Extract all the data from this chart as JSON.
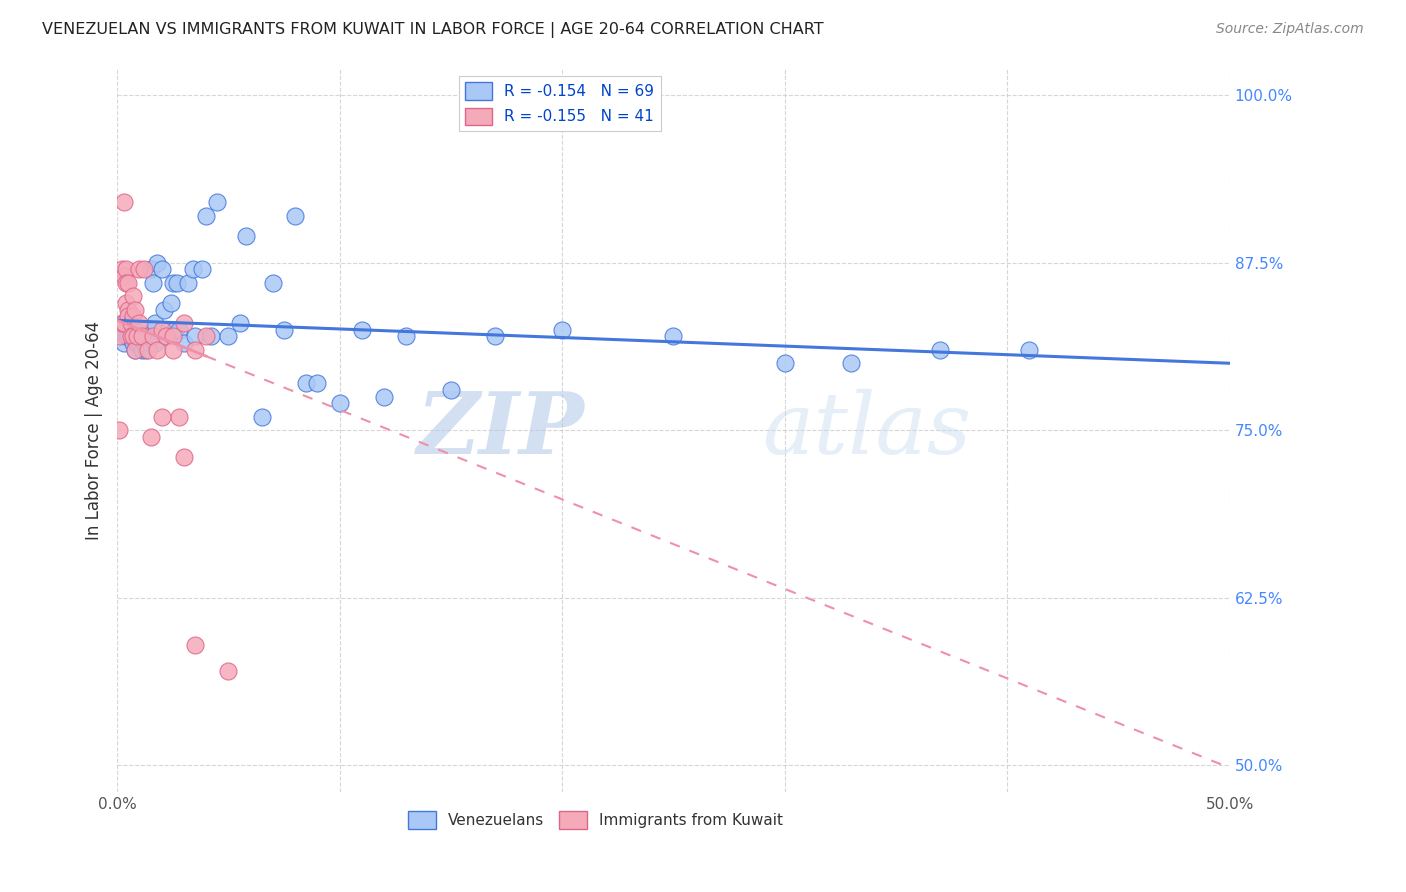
{
  "title": "VENEZUELAN VS IMMIGRANTS FROM KUWAIT IN LABOR FORCE | AGE 20-64 CORRELATION CHART",
  "source": "Source: ZipAtlas.com",
  "ylabel": "In Labor Force | Age 20-64",
  "xlim": [
    0.0,
    0.5
  ],
  "ylim": [
    0.48,
    1.02
  ],
  "xticks": [
    0.0,
    0.1,
    0.2,
    0.3,
    0.4,
    0.5
  ],
  "xticklabels": [
    "0.0%",
    "",
    "",
    "",
    "",
    "50.0%"
  ],
  "yticks": [
    0.5,
    0.625,
    0.75,
    0.875,
    1.0
  ],
  "yticklabels": [
    "50.0%",
    "62.5%",
    "75.0%",
    "87.5%",
    "100.0%"
  ],
  "ytick_color": "#4488ff",
  "venezuelan_color": "#aac8f5",
  "kuwait_color": "#f5aaba",
  "trendline_venezuelan_color": "#4477dd",
  "trendline_kuwait_color": "#f090a8",
  "legend_R_venezuelan": "R = -0.154",
  "legend_N_venezuelan": "N = 69",
  "legend_R_kuwait": "R = -0.155",
  "legend_N_kuwait": "N = 41",
  "watermark_zip": "ZIP",
  "watermark_atlas": "atlas",
  "venezuelan_x": [
    0.002,
    0.003,
    0.004,
    0.005,
    0.005,
    0.006,
    0.006,
    0.007,
    0.007,
    0.007,
    0.008,
    0.008,
    0.008,
    0.009,
    0.009,
    0.01,
    0.01,
    0.01,
    0.011,
    0.011,
    0.012,
    0.012,
    0.013,
    0.013,
    0.014,
    0.015,
    0.016,
    0.016,
    0.017,
    0.017,
    0.018,
    0.02,
    0.021,
    0.022,
    0.023,
    0.024,
    0.025,
    0.026,
    0.027,
    0.028,
    0.03,
    0.032,
    0.034,
    0.035,
    0.038,
    0.04,
    0.042,
    0.045,
    0.05,
    0.055,
    0.058,
    0.065,
    0.07,
    0.075,
    0.08,
    0.085,
    0.09,
    0.1,
    0.11,
    0.12,
    0.13,
    0.15,
    0.17,
    0.2,
    0.25,
    0.3,
    0.33,
    0.37,
    0.41
  ],
  "venezuelan_y": [
    0.82,
    0.815,
    0.82,
    0.82,
    0.83,
    0.82,
    0.825,
    0.82,
    0.825,
    0.815,
    0.82,
    0.81,
    0.825,
    0.82,
    0.815,
    0.82,
    0.82,
    0.815,
    0.81,
    0.82,
    0.825,
    0.815,
    0.82,
    0.81,
    0.82,
    0.87,
    0.825,
    0.86,
    0.83,
    0.815,
    0.875,
    0.87,
    0.84,
    0.82,
    0.825,
    0.845,
    0.86,
    0.825,
    0.86,
    0.825,
    0.815,
    0.86,
    0.87,
    0.82,
    0.87,
    0.91,
    0.82,
    0.92,
    0.82,
    0.83,
    0.895,
    0.76,
    0.86,
    0.825,
    0.91,
    0.785,
    0.785,
    0.77,
    0.825,
    0.775,
    0.82,
    0.78,
    0.82,
    0.825,
    0.82,
    0.8,
    0.8,
    0.81,
    0.81
  ],
  "kuwait_x": [
    0.001,
    0.001,
    0.002,
    0.002,
    0.003,
    0.003,
    0.003,
    0.004,
    0.004,
    0.004,
    0.005,
    0.005,
    0.005,
    0.006,
    0.006,
    0.007,
    0.007,
    0.007,
    0.008,
    0.008,
    0.009,
    0.01,
    0.01,
    0.011,
    0.012,
    0.014,
    0.015,
    0.016,
    0.018,
    0.02,
    0.022,
    0.025,
    0.028,
    0.03,
    0.035,
    0.04,
    0.05,
    0.02,
    0.025,
    0.03,
    0.035
  ],
  "kuwait_y": [
    0.82,
    0.75,
    0.87,
    0.83,
    0.92,
    0.865,
    0.83,
    0.87,
    0.86,
    0.845,
    0.84,
    0.86,
    0.835,
    0.83,
    0.82,
    0.85,
    0.835,
    0.82,
    0.84,
    0.81,
    0.82,
    0.87,
    0.83,
    0.82,
    0.87,
    0.81,
    0.745,
    0.82,
    0.81,
    0.825,
    0.82,
    0.82,
    0.76,
    0.83,
    0.81,
    0.82,
    0.57,
    0.76,
    0.81,
    0.73,
    0.59
  ],
  "ven_trend_x0": 0.0,
  "ven_trend_y0": 0.832,
  "ven_trend_x1": 0.5,
  "ven_trend_y1": 0.8,
  "kuw_trend_x0": 0.0,
  "kuw_trend_y0": 0.832,
  "kuw_trend_x1": 0.5,
  "kuw_trend_y1": 0.498
}
